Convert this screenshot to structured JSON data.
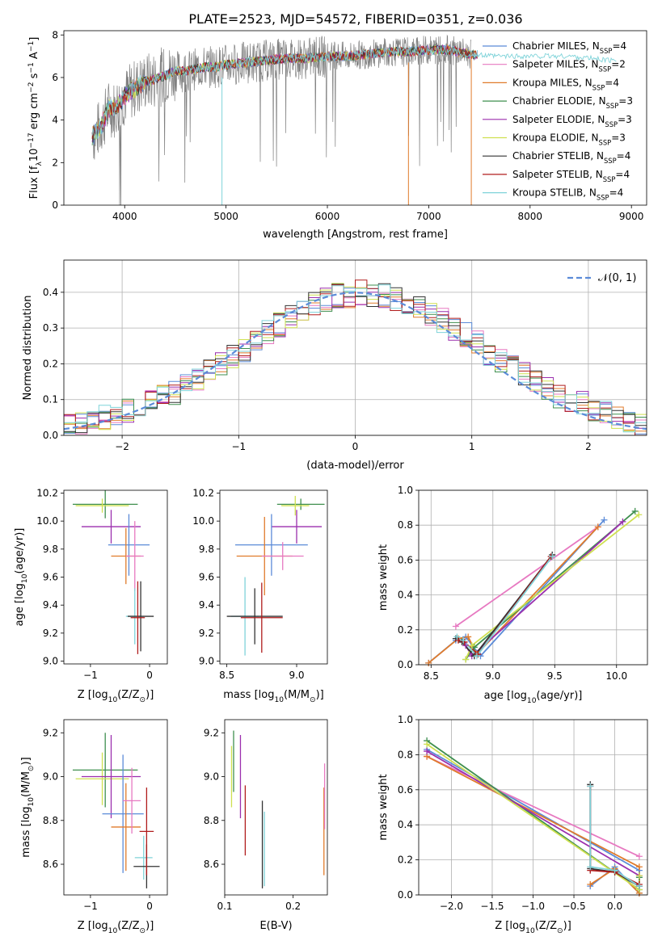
{
  "figure": {
    "title": "PLATE=2523, MJD=54572, FIBERID=0351, z=0.036"
  },
  "colors": {
    "chabrier_miles": "#5b8bd8",
    "salpeter_miles": "#e779c1",
    "kroupa_miles": "#e07b2b",
    "chabrier_elodie": "#3f8f4f",
    "salpeter_elodie": "#9b2fae",
    "kroupa_elodie": "#cfe050",
    "chabrier_stelib": "#333333",
    "salpeter_stelib": "#b01c1c",
    "kroupa_stelib": "#7fd3d9",
    "data": "#808080",
    "normal": "#5b8bd8"
  },
  "chart_data": [
    {
      "id": "spectrum",
      "type": "line",
      "title": "PLATE=2523, MJD=54572, FIBERID=0351, z=0.036",
      "xlabel": "wavelength [Angstrom, rest frame]",
      "ylabel": "Flux [f",
      "ylabel_sub": "λ",
      "ylabel_rest": "10",
      "ylabel_exp1": "−17",
      "ylabel_mid": " erg cm",
      "ylabel_exp2": "−2",
      "ylabel_mid2": " s",
      "ylabel_exp3": "−1",
      "ylabel_end": " A",
      "ylabel_exp4": "−1",
      "ylabel_close": "]",
      "xlim": [
        3400,
        9150
      ],
      "ylim": [
        0,
        8.2
      ],
      "xticks": [
        4000,
        5000,
        6000,
        7000,
        8000,
        9000
      ],
      "yticks": [
        0,
        2,
        4,
        6,
        8
      ],
      "xticklabels": [
        "4000",
        "5000",
        "6000",
        "7000",
        "8000",
        "9000"
      ],
      "yticklabels": [
        "0",
        "2",
        "4",
        "6",
        "8"
      ],
      "grid": false,
      "legend_position": "right",
      "continuum": {
        "x": [
          3680,
          3750,
          3800,
          3850,
          3900,
          4000,
          4100,
          4200,
          4300,
          4400,
          4500,
          4600,
          4700,
          4800,
          4900,
          5000,
          5200,
          5400,
          5600,
          5800,
          6000,
          6200,
          6400,
          6600,
          6800,
          7000,
          7200,
          7400,
          7600,
          7800,
          8000,
          8200,
          8400,
          8600,
          8800
        ],
        "y": [
          3.2,
          3.6,
          4.1,
          4.6,
          4.5,
          5.1,
          5.5,
          5.8,
          5.9,
          6.1,
          6.3,
          6.3,
          6.4,
          6.5,
          6.5,
          6.6,
          6.7,
          6.8,
          6.9,
          6.9,
          7.0,
          7.0,
          7.1,
          7.2,
          7.2,
          7.3,
          7.3,
          7.1,
          7.0,
          7.0,
          7.0,
          7.0,
          7.0,
          6.9,
          6.8
        ]
      },
      "series": [
        {
          "name": "Chabrier MILES, N",
          "sub": "SSP",
          "count": "=4",
          "color_key": "chabrier_miles"
        },
        {
          "name": "Salpeter MILES, N",
          "sub": "SSP",
          "count": "=2",
          "color_key": "salpeter_miles"
        },
        {
          "name": "Kroupa MILES, N",
          "sub": "SSP",
          "count": "=4",
          "color_key": "kroupa_miles"
        },
        {
          "name": "Chabrier ELODIE, N",
          "sub": "SSP",
          "count": "=3",
          "color_key": "chabrier_elodie"
        },
        {
          "name": "Salpeter ELODIE, N",
          "sub": "SSP",
          "count": "=3",
          "color_key": "salpeter_elodie"
        },
        {
          "name": "Kroupa ELODIE, N",
          "sub": "SSP",
          "count": "=3",
          "color_key": "kroupa_elodie"
        },
        {
          "name": "Chabrier STELIB, N",
          "sub": "SSP",
          "count": "=4",
          "color_key": "chabrier_stelib"
        },
        {
          "name": "Salpeter STELIB, N",
          "sub": "SSP",
          "count": "=4",
          "color_key": "salpeter_stelib"
        },
        {
          "name": "Kroupa STELIB, N",
          "sub": "SSP",
          "count": "=4",
          "color_key": "kroupa_stelib"
        }
      ]
    },
    {
      "id": "residuals",
      "type": "histogram",
      "xlabel": "(data-model)/error",
      "ylabel": "Normed distribution",
      "xlim": [
        -2.5,
        2.5
      ],
      "ylim": [
        0,
        0.49
      ],
      "xticks": [
        -2,
        -1,
        0,
        1,
        2
      ],
      "xticklabels": [
        "−2",
        "−1",
        "0",
        "1",
        "2"
      ],
      "yticks": [
        0,
        0.1,
        0.2,
        0.3,
        0.4
      ],
      "yticklabels": [
        "0.0",
        "0.1",
        "0.2",
        "0.3",
        "0.4"
      ],
      "grid": true,
      "legend_position": "top-right",
      "legend_label": "𝒩(0, 1)",
      "bin_width": 0.1,
      "bin_start": -2.5,
      "reference": [
        0.028,
        0.032,
        0.042,
        0.05,
        0.06,
        0.07,
        0.08,
        0.095,
        0.11,
        0.12,
        0.14,
        0.16,
        0.18,
        0.2,
        0.22,
        0.24,
        0.26,
        0.29,
        0.31,
        0.33,
        0.35,
        0.37,
        0.38,
        0.39,
        0.39,
        0.4,
        0.39,
        0.39,
        0.38,
        0.37,
        0.36,
        0.34,
        0.32,
        0.3,
        0.28,
        0.26,
        0.23,
        0.21,
        0.19,
        0.17,
        0.15,
        0.13,
        0.11,
        0.1,
        0.09,
        0.075,
        0.065,
        0.05,
        0.04,
        0.03
      ],
      "series_colors": [
        "chabrier_miles",
        "salpeter_miles",
        "kroupa_miles",
        "chabrier_elodie",
        "salpeter_elodie",
        "kroupa_elodie",
        "chabrier_stelib",
        "salpeter_stelib",
        "kroupa_stelib"
      ]
    },
    {
      "id": "age_vs_Z",
      "type": "errorbar",
      "xlabel": "Z [log",
      "xlabel_sub": "10",
      "xlabel_rest": "(Z/Z",
      "xlabel_sun": "⊙",
      "xlabel_end": ")]",
      "ylabel": "age  [log10(age/yr)]",
      "xlim": [
        -1.45,
        0.3
      ],
      "ylim": [
        8.98,
        10.22
      ],
      "xticks": [
        -1,
        0
      ],
      "xticklabels": [
        "−1",
        "0"
      ],
      "yticks": [
        9.0,
        9.2,
        9.4,
        9.6,
        9.8,
        10.0,
        10.2
      ],
      "yticklabels": [
        "9.0",
        "9.2",
        "9.4",
        "9.6",
        "9.8",
        "10.0",
        "10.2"
      ],
      "points": [
        {
          "x": -0.75,
          "y": 10.12,
          "xerr": 0.55,
          "yerr": 0.1,
          "color_key": "chabrier_elodie"
        },
        {
          "x": -0.8,
          "y": 10.11,
          "xerr": 0.45,
          "yerr": 0.05,
          "color_key": "kroupa_elodie"
        },
        {
          "x": -0.65,
          "y": 9.96,
          "xerr": 0.5,
          "yerr": 0.12,
          "color_key": "salpeter_elodie"
        },
        {
          "x": -0.35,
          "y": 9.83,
          "xerr": 0.35,
          "yerr": 0.22,
          "color_key": "chabrier_miles"
        },
        {
          "x": -0.4,
          "y": 9.75,
          "xerr": 0.25,
          "yerr": 0.2,
          "color_key": "kroupa_miles"
        },
        {
          "x": -0.25,
          "y": 9.75,
          "xerr": 0.15,
          "yerr": 0.25,
          "color_key": "salpeter_miles"
        },
        {
          "x": -0.25,
          "y": 9.32,
          "xerr": 0.15,
          "yerr": 0.2,
          "color_key": "kroupa_stelib"
        },
        {
          "x": -0.15,
          "y": 9.32,
          "xerr": 0.22,
          "yerr": 0.25,
          "color_key": "chabrier_stelib"
        },
        {
          "x": -0.2,
          "y": 9.31,
          "xerr": 0.12,
          "yerr": 0.26,
          "color_key": "salpeter_stelib"
        }
      ]
    },
    {
      "id": "age_vs_mass",
      "type": "errorbar",
      "xlabel": "mass [log",
      "xlabel_sub": "10",
      "xlabel_rest": "(M/M",
      "xlabel_sun": "⊙",
      "xlabel_end": ")]",
      "xlim": [
        8.45,
        9.22
      ],
      "ylim": [
        8.98,
        10.22
      ],
      "xticks": [
        8.5,
        9.0
      ],
      "xticklabels": [
        "8.5",
        "9.0"
      ],
      "yticks": [
        9.0,
        9.2,
        9.4,
        9.6,
        9.8,
        10.0,
        10.2
      ],
      "yticklabels": [
        "9.0",
        "9.2",
        "9.4",
        "9.6",
        "9.8",
        "10.0",
        "10.2"
      ],
      "points": [
        {
          "x": 9.03,
          "y": 10.12,
          "xerr": 0.17,
          "yerr": 0.04,
          "color_key": "chabrier_elodie"
        },
        {
          "x": 8.99,
          "y": 10.11,
          "xerr": 0.1,
          "yerr": 0.07,
          "color_key": "kroupa_elodie"
        },
        {
          "x": 9.0,
          "y": 9.96,
          "xerr": 0.18,
          "yerr": 0.12,
          "color_key": "salpeter_elodie"
        },
        {
          "x": 8.82,
          "y": 9.83,
          "xerr": 0.26,
          "yerr": 0.22,
          "color_key": "chabrier_miles"
        },
        {
          "x": 8.77,
          "y": 9.75,
          "xerr": 0.2,
          "yerr": 0.28,
          "color_key": "kroupa_miles"
        },
        {
          "x": 8.9,
          "y": 9.75,
          "xerr": 0.15,
          "yerr": 0.1,
          "color_key": "salpeter_miles"
        },
        {
          "x": 8.63,
          "y": 9.32,
          "xerr": 0.1,
          "yerr": 0.28,
          "color_key": "kroupa_stelib"
        },
        {
          "x": 8.7,
          "y": 9.32,
          "xerr": 0.2,
          "yerr": 0.2,
          "color_key": "chabrier_stelib"
        },
        {
          "x": 8.75,
          "y": 9.31,
          "xerr": 0.15,
          "yerr": 0.25,
          "color_key": "salpeter_stelib"
        }
      ]
    },
    {
      "id": "weight_vs_age",
      "type": "line",
      "xlabel": "age  [log10(age/yr)]",
      "ylabel": "mass weight",
      "xlim": [
        8.4,
        10.25
      ],
      "ylim": [
        0,
        1.0
      ],
      "xticks": [
        8.5,
        9.0,
        9.5,
        10.0
      ],
      "xticklabels": [
        "8.5",
        "9.0",
        "9.5",
        "10.0"
      ],
      "yticks": [
        0,
        0.2,
        0.4,
        0.6,
        0.8,
        1.0
      ],
      "yticklabels": [
        "0.0",
        "0.2",
        "0.4",
        "0.6",
        "0.8",
        "1.0"
      ],
      "grid": true,
      "series": [
        {
          "color_key": "chabrier_miles",
          "x": [
            8.48,
            8.7,
            8.78,
            8.9,
            9.9
          ],
          "y": [
            0.01,
            0.14,
            0.16,
            0.05,
            0.83
          ]
        },
        {
          "color_key": "salpeter_miles",
          "x": [
            8.7,
            9.85
          ],
          "y": [
            0.22,
            0.79
          ]
        },
        {
          "color_key": "kroupa_miles",
          "x": [
            8.48,
            8.72,
            8.8,
            8.87,
            9.85
          ],
          "y": [
            0.01,
            0.15,
            0.16,
            0.06,
            0.79
          ]
        },
        {
          "color_key": "chabrier_elodie",
          "x": [
            8.78,
            8.85,
            10.15
          ],
          "y": [
            0.03,
            0.1,
            0.88
          ]
        },
        {
          "color_key": "salpeter_elodie",
          "x": [
            8.78,
            8.83,
            10.05
          ],
          "y": [
            0.11,
            0.05,
            0.82
          ]
        },
        {
          "color_key": "kroupa_elodie",
          "x": [
            8.78,
            8.83,
            10.18
          ],
          "y": [
            0.03,
            0.11,
            0.86
          ]
        },
        {
          "color_key": "chabrier_stelib",
          "x": [
            8.7,
            8.75,
            8.85,
            9.48
          ],
          "y": [
            0.15,
            0.13,
            0.05,
            0.63
          ]
        },
        {
          "color_key": "salpeter_stelib",
          "x": [
            8.72,
            8.77,
            8.88,
            9.47
          ],
          "y": [
            0.14,
            0.13,
            0.06,
            0.62
          ]
        },
        {
          "color_key": "kroupa_stelib",
          "x": [
            8.71,
            8.76,
            8.87,
            9.48
          ],
          "y": [
            0.16,
            0.14,
            0.05,
            0.62
          ]
        }
      ]
    },
    {
      "id": "mass_vs_Z",
      "type": "errorbar",
      "xlabel": "Z [log",
      "xlabel_sub": "10",
      "xlabel_rest": "(Z/Z",
      "xlabel_sun": "⊙",
      "xlabel_end": ")]",
      "ylabel": "mass [log10(M/M⊙)]",
      "xlim": [
        -1.45,
        0.3
      ],
      "ylim": [
        8.46,
        9.26
      ],
      "xticks": [
        -1,
        0
      ],
      "xticklabels": [
        "−1",
        "0"
      ],
      "yticks": [
        8.6,
        8.8,
        9.0,
        9.2
      ],
      "yticklabels": [
        "8.6",
        "8.8",
        "9.0",
        "9.2"
      ],
      "points": [
        {
          "x": -0.75,
          "y": 9.03,
          "xerr": 0.55,
          "yerr": 0.17,
          "color_key": "chabrier_elodie"
        },
        {
          "x": -0.8,
          "y": 8.99,
          "xerr": 0.45,
          "yerr": 0.12,
          "color_key": "kroupa_elodie"
        },
        {
          "x": -0.65,
          "y": 9.0,
          "xerr": 0.5,
          "yerr": 0.19,
          "color_key": "salpeter_elodie"
        },
        {
          "x": -0.45,
          "y": 8.83,
          "xerr": 0.35,
          "yerr": 0.27,
          "color_key": "chabrier_miles"
        },
        {
          "x": -0.4,
          "y": 8.77,
          "xerr": 0.25,
          "yerr": 0.2,
          "color_key": "kroupa_miles"
        },
        {
          "x": -0.3,
          "y": 8.89,
          "xerr": 0.15,
          "yerr": 0.15,
          "color_key": "salpeter_miles"
        },
        {
          "x": -0.1,
          "y": 8.63,
          "xerr": 0.15,
          "yerr": 0.1,
          "color_key": "kroupa_stelib"
        },
        {
          "x": -0.05,
          "y": 8.59,
          "xerr": 0.22,
          "yerr": 0.1,
          "color_key": "chabrier_stelib"
        },
        {
          "x": -0.05,
          "y": 8.75,
          "xerr": 0.12,
          "yerr": 0.2,
          "color_key": "salpeter_stelib"
        }
      ]
    },
    {
      "id": "mass_vs_ebv",
      "type": "errorbar",
      "xlabel": "E(B-V)",
      "xlim": [
        0.1,
        0.25
      ],
      "ylim": [
        8.46,
        9.26
      ],
      "xticks": [
        0.1,
        0.2
      ],
      "xticklabels": [
        "0.1",
        "0.2"
      ],
      "yticks": [
        8.6,
        8.8,
        9.0,
        9.2
      ],
      "yticklabels": [
        "8.6",
        "8.8",
        "9.0",
        "9.2"
      ],
      "points": [
        {
          "x": 0.11,
          "y": 9.0,
          "xerr": 0,
          "yerr": 0.14,
          "color_key": "kroupa_elodie"
        },
        {
          "x": 0.113,
          "y": 9.07,
          "xerr": 0,
          "yerr": 0.14,
          "color_key": "chabrier_elodie"
        },
        {
          "x": 0.123,
          "y": 9.0,
          "xerr": 0,
          "yerr": 0.19,
          "color_key": "salpeter_elodie"
        },
        {
          "x": 0.13,
          "y": 8.8,
          "xerr": 0,
          "yerr": 0.16,
          "color_key": "salpeter_stelib"
        },
        {
          "x": 0.155,
          "y": 8.69,
          "xerr": 0,
          "yerr": 0.2,
          "color_key": "chabrier_stelib"
        },
        {
          "x": 0.158,
          "y": 8.67,
          "xerr": 0,
          "yerr": 0.17,
          "color_key": "kroupa_stelib"
        },
        {
          "x": 0.245,
          "y": 8.75,
          "xerr": 0,
          "yerr": 0.2,
          "color_key": "kroupa_miles"
        },
        {
          "x": 0.246,
          "y": 8.91,
          "xerr": 0,
          "yerr": 0.15,
          "color_key": "salpeter_miles"
        }
      ]
    },
    {
      "id": "weight_vs_Z",
      "type": "line",
      "xlabel": "Z [log",
      "xlabel_sub": "10",
      "xlabel_rest": "(Z/Z",
      "xlabel_sun": "⊙",
      "xlabel_end": ")]",
      "ylabel": "mass weight",
      "xlim": [
        -2.4,
        0.4
      ],
      "ylim": [
        0,
        1.0
      ],
      "xticks": [
        -2.0,
        -1.5,
        -1.0,
        -0.5,
        0.0
      ],
      "xticklabels": [
        "−2.0",
        "−1.5",
        "−1.0",
        "−0.5",
        "0.0"
      ],
      "yticks": [
        0,
        0.2,
        0.4,
        0.6,
        0.8,
        1.0
      ],
      "yticklabels": [
        "0.0",
        "0.2",
        "0.4",
        "0.6",
        "0.8",
        "1.0"
      ],
      "grid": true,
      "series": [
        {
          "color_key": "chabrier_miles",
          "x": [
            -2.3,
            0.3,
            0.3,
            0.0,
            -0.3
          ],
          "y": [
            0.83,
            0.14,
            0.01,
            0.16,
            0.05
          ]
        },
        {
          "color_key": "salpeter_miles",
          "x": [
            -2.3,
            0.3
          ],
          "y": [
            0.79,
            0.22
          ]
        },
        {
          "color_key": "kroupa_miles",
          "x": [
            -2.3,
            0.3,
            0.3,
            0.0,
            -0.3
          ],
          "y": [
            0.79,
            0.16,
            0.01,
            0.15,
            0.06
          ]
        },
        {
          "color_key": "chabrier_elodie",
          "x": [
            -2.3,
            0.3,
            0.3
          ],
          "y": [
            0.88,
            0.03,
            0.1
          ]
        },
        {
          "color_key": "salpeter_elodie",
          "x": [
            -2.3,
            0.3,
            0.3
          ],
          "y": [
            0.82,
            0.11,
            0.05
          ]
        },
        {
          "color_key": "kroupa_elodie",
          "x": [
            -2.3,
            0.3,
            0.3
          ],
          "y": [
            0.86,
            0.03,
            0.11
          ]
        },
        {
          "color_key": "chabrier_stelib",
          "x": [
            -0.3,
            -0.3,
            0.0,
            0.3
          ],
          "y": [
            0.63,
            0.15,
            0.13,
            0.05
          ]
        },
        {
          "color_key": "salpeter_stelib",
          "x": [
            -0.3,
            -0.3,
            0.0,
            0.3
          ],
          "y": [
            0.62,
            0.14,
            0.13,
            0.06
          ]
        },
        {
          "color_key": "kroupa_stelib",
          "x": [
            -0.3,
            -0.3,
            0.0,
            0.3
          ],
          "y": [
            0.62,
            0.16,
            0.14,
            0.05
          ]
        }
      ]
    }
  ]
}
